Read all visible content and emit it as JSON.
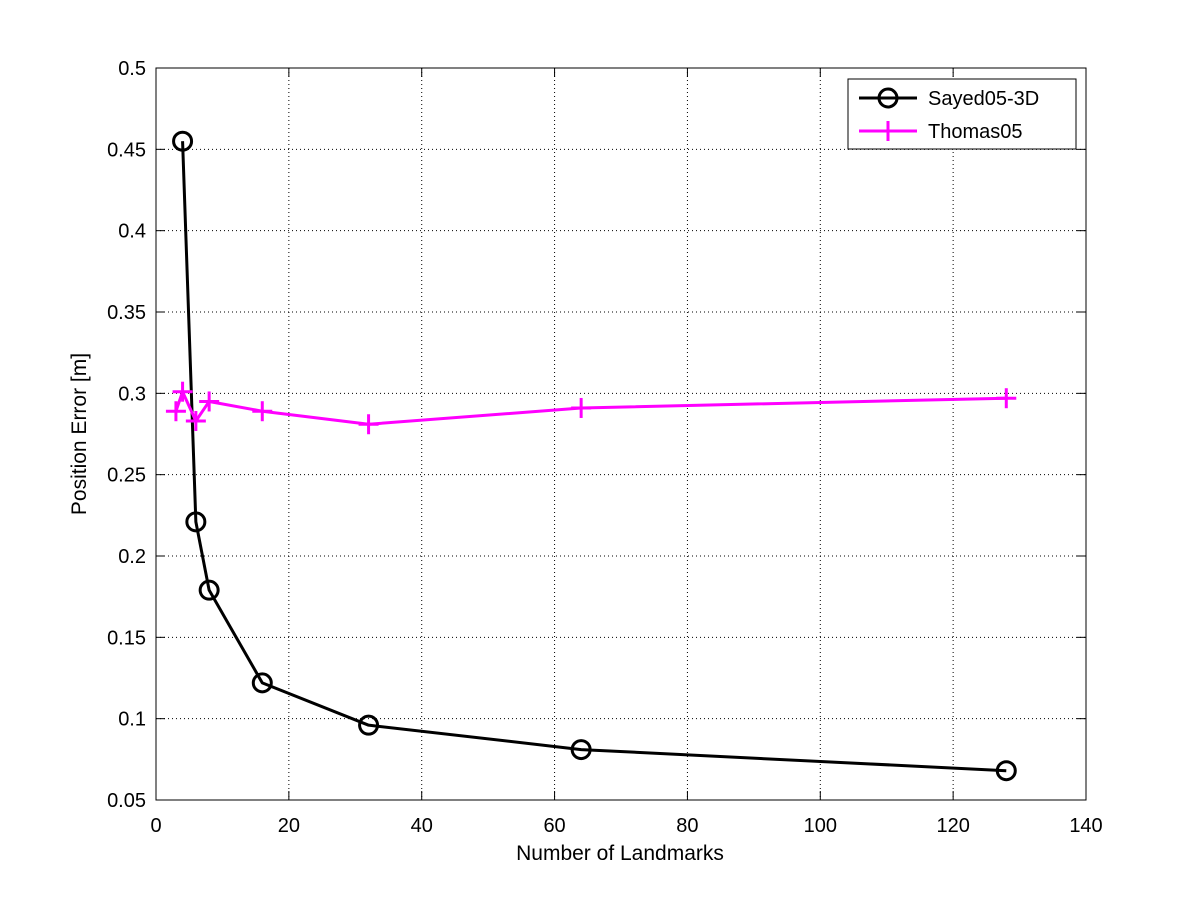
{
  "chart_data": {
    "type": "line",
    "title": "",
    "xlabel": "Number of Landmarks",
    "ylabel": "Position Error [m]",
    "xlim": [
      0,
      140
    ],
    "ylim": [
      0.05,
      0.5
    ],
    "grid": true,
    "legend_position": "top-right",
    "x_ticks": [
      0,
      20,
      40,
      60,
      80,
      100,
      120,
      140
    ],
    "x_tick_labels": [
      "0",
      "20",
      "40",
      "60",
      "80",
      "100",
      "120",
      "140"
    ],
    "y_ticks": [
      0.05,
      0.1,
      0.15,
      0.2,
      0.25,
      0.3,
      0.35,
      0.4,
      0.45,
      0.5
    ],
    "y_tick_labels": [
      "0.05",
      "0.1",
      "0.15",
      "0.2",
      "0.25",
      "0.3",
      "0.35",
      "0.4",
      "0.45",
      "0.5"
    ],
    "series": [
      {
        "name": "Sayed05-3D",
        "color": "#000000",
        "marker": "circle",
        "x": [
          4,
          6,
          8,
          16,
          32,
          64,
          128
        ],
        "y": [
          0.455,
          0.221,
          0.179,
          0.122,
          0.096,
          0.081,
          0.068
        ]
      },
      {
        "name": "Thomas05",
        "color": "#ff00ff",
        "marker": "plus",
        "x": [
          3,
          4,
          6,
          8,
          16,
          32,
          64,
          128
        ],
        "y": [
          0.289,
          0.301,
          0.283,
          0.295,
          0.289,
          0.281,
          0.291,
          0.297
        ]
      }
    ]
  }
}
